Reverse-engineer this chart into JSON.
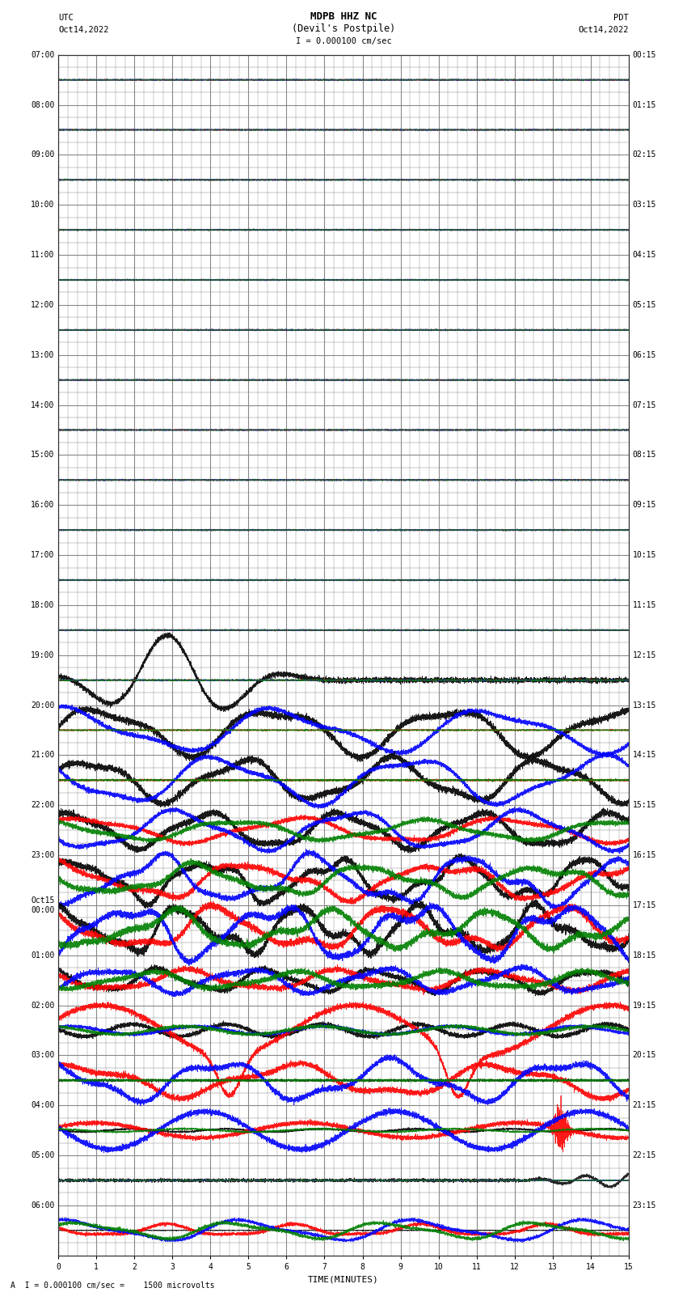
{
  "title_line1": "MDPB HHZ NC",
  "title_line2": "(Devil's Postpile)",
  "title_scale": "I = 0.000100 cm/sec",
  "utc_label": "UTC",
  "utc_date": "Oct14,2022",
  "pdt_label": "PDT",
  "pdt_date": "Oct14,2022",
  "xlabel": "TIME(MINUTES)",
  "bottom_label": "A  I = 0.000100 cm/sec =    1500 microvolts",
  "xlim": [
    0,
    15
  ],
  "bg_color": "#ffffff",
  "grid_color": "#888888",
  "trace_colors": [
    "black",
    "red",
    "blue",
    "green"
  ],
  "left_yticks_labels": [
    "07:00",
    "08:00",
    "09:00",
    "10:00",
    "11:00",
    "12:00",
    "13:00",
    "14:00",
    "15:00",
    "16:00",
    "17:00",
    "18:00",
    "19:00",
    "20:00",
    "21:00",
    "22:00",
    "23:00",
    "Oct15\n00:00",
    "01:00",
    "02:00",
    "03:00",
    "04:00",
    "05:00",
    "06:00"
  ],
  "right_yticks_labels": [
    "00:15",
    "01:15",
    "02:15",
    "03:15",
    "04:15",
    "05:15",
    "06:15",
    "07:15",
    "08:15",
    "09:15",
    "10:15",
    "11:15",
    "12:15",
    "13:15",
    "14:15",
    "15:15",
    "16:15",
    "17:15",
    "18:15",
    "19:15",
    "20:15",
    "21:15",
    "22:15",
    "23:15"
  ],
  "num_rows": 24,
  "font_size_title": 9,
  "font_size_axis": 8,
  "font_size_ticks": 7,
  "font_family": "monospace"
}
